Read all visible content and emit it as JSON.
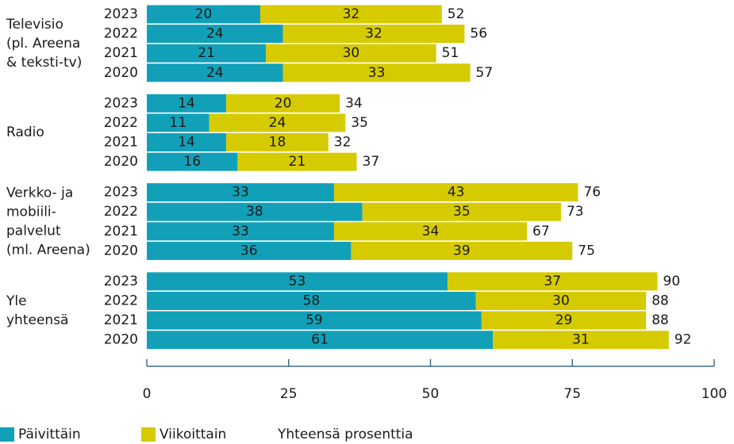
{
  "chart_data": {
    "type": "bar",
    "groups": [
      {
        "label": [
          "Televisio",
          "(pl. Areena",
          "& teksti-tv)"
        ],
        "categories": [
          "2023",
          "2022",
          "2021",
          "2020"
        ]
      },
      {
        "label": [
          "Radio"
        ],
        "categories": [
          "2023",
          "2022",
          "2021",
          "2020"
        ]
      },
      {
        "label": [
          "Verkko- ja",
          "mobiili-",
          "palvelut",
          "(ml. Areena)"
        ],
        "categories": [
          "2023",
          "2022",
          "2021",
          "2020"
        ]
      },
      {
        "label": [
          "Yle",
          "yhteensä"
        ],
        "categories": [
          "2023",
          "2022",
          "2021",
          "2020"
        ]
      }
    ],
    "series": [
      {
        "name": "Päivittäin",
        "color": "#12a0b9",
        "values": [
          [
            20,
            24,
            21,
            24
          ],
          [
            14,
            11,
            14,
            16
          ],
          [
            33,
            38,
            33,
            36
          ],
          [
            53,
            58,
            59,
            61
          ]
        ]
      },
      {
        "name": "Viikoittain",
        "color": "#d6cb00",
        "values": [
          [
            32,
            32,
            30,
            33
          ],
          [
            20,
            24,
            18,
            21
          ],
          [
            43,
            35,
            34,
            39
          ],
          [
            37,
            30,
            29,
            31
          ]
        ]
      }
    ],
    "totals": {
      "name": "Yhteensä prosenttia",
      "values": [
        [
          52,
          56,
          51,
          57
        ],
        [
          34,
          35,
          32,
          37
        ],
        [
          76,
          73,
          67,
          75
        ],
        [
          90,
          88,
          88,
          92
        ]
      ]
    },
    "xlim": [
      0,
      100
    ],
    "xticks": [
      0,
      25,
      50,
      75,
      100
    ]
  }
}
